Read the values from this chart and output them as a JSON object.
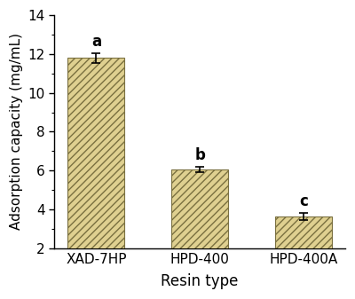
{
  "categories": [
    "XAD-7HP",
    "HPD-400",
    "HPD-400A"
  ],
  "values": [
    11.8,
    6.05,
    3.65
  ],
  "errors": [
    0.25,
    0.15,
    0.18
  ],
  "letters": [
    "a",
    "b",
    "c"
  ],
  "bar_color": "#dfd090",
  "bar_edgecolor": "#7a7040",
  "hatch": "////",
  "xlabel": "Resin type",
  "ylabel": "Adsorption capacity (mg/mL)",
  "ylim": [
    2,
    14
  ],
  "yticks": [
    2,
    4,
    6,
    8,
    10,
    12,
    14
  ],
  "xlabel_fontsize": 12,
  "ylabel_fontsize": 11,
  "tick_fontsize": 11,
  "letter_fontsize": 12,
  "bar_width": 0.55,
  "background_color": "#ffffff"
}
